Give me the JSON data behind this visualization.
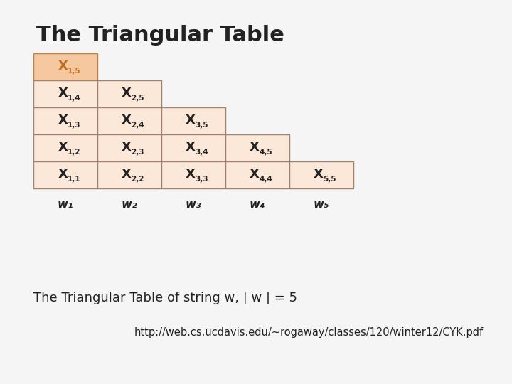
{
  "title": "The Triangular Table",
  "subtitle": "The Triangular Table of string w, | w | = 5",
  "url": "http://web.cs.ucdavis.edu/~rogaway/classes/120/winter12/CYK.pdf",
  "bg_color": "#f5f5f5",
  "cell_fill": "#fce8d8",
  "cell_border": "#a08070",
  "highlight_fill": "#f5c8a0",
  "highlight_border": "#c08040",
  "cells": [
    {
      "row": 0,
      "col": 0,
      "label": "X",
      "sub": "1,5",
      "highlight": true
    },
    {
      "row": 1,
      "col": 0,
      "label": "X",
      "sub": "1,4",
      "highlight": false
    },
    {
      "row": 1,
      "col": 1,
      "label": "X",
      "sub": "2,5",
      "highlight": false
    },
    {
      "row": 2,
      "col": 0,
      "label": "X",
      "sub": "1,3",
      "highlight": false
    },
    {
      "row": 2,
      "col": 1,
      "label": "X",
      "sub": "2,4",
      "highlight": false
    },
    {
      "row": 2,
      "col": 2,
      "label": "X",
      "sub": "3,5",
      "highlight": false
    },
    {
      "row": 3,
      "col": 0,
      "label": "X",
      "sub": "1,2",
      "highlight": false
    },
    {
      "row": 3,
      "col": 1,
      "label": "X",
      "sub": "2,3",
      "highlight": false
    },
    {
      "row": 3,
      "col": 2,
      "label": "X",
      "sub": "3,4",
      "highlight": false
    },
    {
      "row": 3,
      "col": 3,
      "label": "X",
      "sub": "4,5",
      "highlight": false
    },
    {
      "row": 4,
      "col": 0,
      "label": "X",
      "sub": "1,1",
      "highlight": false
    },
    {
      "row": 4,
      "col": 1,
      "label": "X",
      "sub": "2,2",
      "highlight": false
    },
    {
      "row": 4,
      "col": 2,
      "label": "X",
      "sub": "3,3",
      "highlight": false
    },
    {
      "row": 4,
      "col": 3,
      "label": "X",
      "sub": "4,4",
      "highlight": false
    },
    {
      "row": 4,
      "col": 4,
      "label": "X",
      "sub": "5,5",
      "highlight": false
    }
  ],
  "w_labels": [
    "w₁",
    "w₂",
    "w₃",
    "w₄",
    "w₅"
  ],
  "title_color": "#222222",
  "text_color": "#222222",
  "highlight_text_color": "#c07020"
}
